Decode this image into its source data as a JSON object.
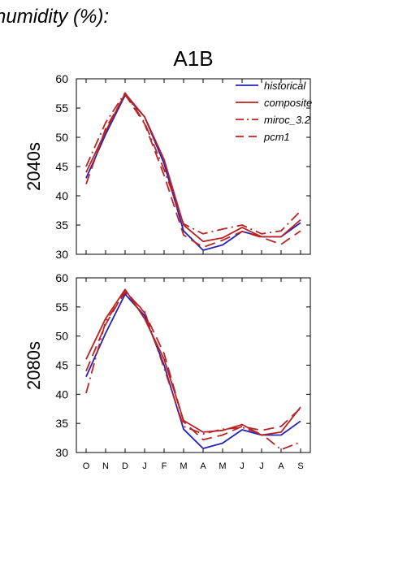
{
  "figure": {
    "title": "humidity (%):",
    "subtitle": "A1B"
  },
  "chart_data": [
    {
      "type": "line",
      "panel_label": "2040s",
      "categories": [
        "O",
        "N",
        "D",
        "J",
        "F",
        "M",
        "A",
        "M",
        "J",
        "J",
        "A",
        "S"
      ],
      "ylim": [
        30,
        60
      ],
      "yticks": [
        30,
        35,
        40,
        45,
        50,
        55,
        60
      ],
      "grid": false,
      "legend": "top-right",
      "series": [
        {
          "name": "historical",
          "color": "#2222bb",
          "dash": "solid",
          "values": [
            43.0,
            50.5,
            57.2,
            53.5,
            45.5,
            34.0,
            30.7,
            31.6,
            33.9,
            33.0,
            33.0,
            35.4
          ]
        },
        {
          "name": "composite",
          "color": "#bb2222",
          "dash": "solid",
          "values": [
            44.0,
            51.0,
            57.5,
            53.5,
            46.2,
            35.0,
            32.2,
            32.8,
            34.6,
            33.0,
            33.0,
            35.9
          ]
        },
        {
          "name": "miroc_3.2",
          "color": "#bb2222",
          "dash": "dashdot",
          "values": [
            45.0,
            52.5,
            57.6,
            52.5,
            44.5,
            35.2,
            33.5,
            34.3,
            35.0,
            33.5,
            34.0,
            37.4
          ]
        },
        {
          "name": "pcm1",
          "color": "#bb2222",
          "dash": "dashed",
          "values": [
            42.0,
            51.5,
            57.3,
            52.3,
            43.5,
            33.3,
            31.2,
            32.4,
            33.9,
            32.9,
            31.7,
            34.0
          ]
        }
      ]
    },
    {
      "type": "line",
      "panel_label": "2080s",
      "categories": [
        "O",
        "N",
        "D",
        "J",
        "F",
        "M",
        "A",
        "M",
        "J",
        "J",
        "A",
        "S"
      ],
      "ylim": [
        30,
        60
      ],
      "yticks": [
        30,
        35,
        40,
        45,
        50,
        55,
        60
      ],
      "grid": false,
      "series": [
        {
          "name": "historical",
          "color": "#2222bb",
          "dash": "solid",
          "values": [
            43.0,
            50.5,
            57.2,
            53.5,
            45.0,
            34.0,
            30.7,
            31.6,
            33.9,
            33.0,
            33.0,
            35.4
          ]
        },
        {
          "name": "composite",
          "color": "#bb2222",
          "dash": "solid",
          "values": [
            46.0,
            53.0,
            58.0,
            53.0,
            46.0,
            35.5,
            33.5,
            33.8,
            34.8,
            33.0,
            33.5,
            37.8
          ]
        },
        {
          "name": "miroc_3.2",
          "color": "#bb2222",
          "dash": "dashdot",
          "values": [
            40.2,
            52.5,
            57.5,
            54.2,
            44.5,
            34.5,
            33.2,
            34.0,
            34.3,
            33.2,
            30.5,
            31.8
          ]
        },
        {
          "name": "pcm1",
          "color": "#bb2222",
          "dash": "dashed",
          "values": [
            44.0,
            52.0,
            57.8,
            54.0,
            47.0,
            35.3,
            32.2,
            33.0,
            34.5,
            33.8,
            34.5,
            37.6
          ]
        }
      ]
    }
  ]
}
